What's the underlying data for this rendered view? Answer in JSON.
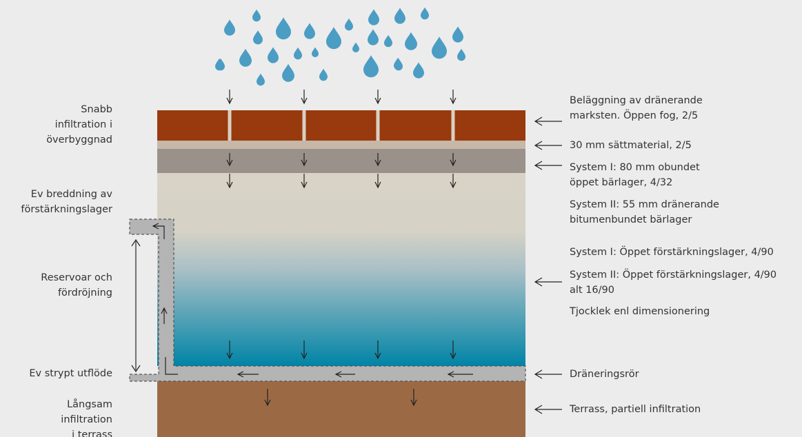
{
  "left_labels": [
    {
      "lines": [
        "Snabb",
        "infiltration i",
        "överbyggnad"
      ]
    },
    {
      "lines": [
        "Ev breddning av",
        "förstärkningslager"
      ]
    },
    {
      "lines": [
        "Reservoar och",
        "fördröjning"
      ]
    },
    {
      "lines": [
        "Ev strypt utflöde"
      ]
    },
    {
      "lines": [
        "Långsam",
        "infiltration",
        "i terrass"
      ]
    }
  ],
  "right_labels": [
    {
      "lines": [
        "Beläggning av dränerande",
        "marksten. Öppen fog, 2/5"
      ]
    },
    {
      "lines": [
        "30 mm sättmaterial, 2/5"
      ]
    },
    {
      "lines": [
        "System I: 80 mm obundet",
        "öppet bärlager, 4/32"
      ]
    },
    {
      "lines": [
        "System II: 55 mm dränerande",
        "bitumenbundet bärlager"
      ]
    },
    {
      "lines": [
        "System I: Öppet förstärkningslager, 4/90"
      ]
    },
    {
      "lines": [
        "System II: Öppet förstärkningslager, 4/90",
        "alt 16/90"
      ]
    },
    {
      "lines": [
        "Tjocklek enl dimensionering"
      ]
    },
    {
      "lines": [
        "Dräneringsrör"
      ]
    },
    {
      "lines": [
        "Terrass, partiell infiltration"
      ]
    }
  ]
}
